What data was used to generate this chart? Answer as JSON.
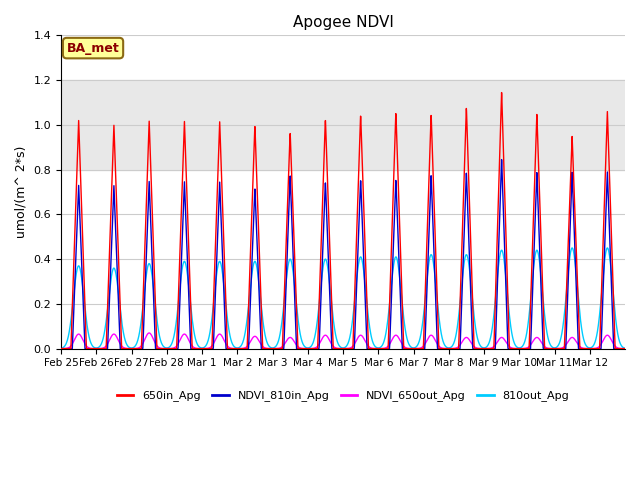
{
  "title": "Apogee NDVI",
  "ylabel": "umol/(m^ 2*s)",
  "ylim": [
    0,
    1.4
  ],
  "background_color": "#ffffff",
  "plot_bg_color": "#ffffff",
  "shade_region": [
    0.8,
    1.2
  ],
  "shade_color": "#e8e8e8",
  "annotation_text": "BA_met",
  "annotation_bg": "#ffff99",
  "annotation_border": "#8b6914",
  "legend_entries": [
    "650in_Apg",
    "NDVI_810in_Apg",
    "NDVI_650out_Apg",
    "810out_Apg"
  ],
  "line_colors": [
    "#ff0000",
    "#0000cc",
    "#ff00ff",
    "#00ccff"
  ],
  "n_days": 16,
  "tick_labels": [
    "Feb 25",
    "Feb 26",
    "Feb 27",
    "Feb 28",
    "Mar 1",
    "Mar 2",
    "Mar 3",
    "Mar 4",
    "Mar 5",
    "Mar 6",
    "Mar 7",
    "Mar 8",
    "Mar 9",
    "Mar 10",
    "Mar 11",
    "Mar 12"
  ],
  "peak_650in": [
    1.02,
    1.0,
    1.02,
    1.02,
    1.02,
    1.0,
    0.97,
    1.03,
    1.05,
    1.06,
    1.05,
    1.08,
    1.15,
    1.05,
    0.95,
    1.06
  ],
  "peak_810in": [
    0.73,
    0.73,
    0.75,
    0.75,
    0.75,
    0.72,
    0.78,
    0.75,
    0.76,
    0.76,
    0.78,
    0.79,
    0.85,
    0.79,
    0.79,
    0.79
  ],
  "peak_650out": [
    0.065,
    0.065,
    0.07,
    0.065,
    0.065,
    0.055,
    0.05,
    0.06,
    0.06,
    0.06,
    0.06,
    0.05,
    0.05,
    0.05,
    0.05,
    0.06
  ],
  "peak_810out": [
    0.37,
    0.36,
    0.38,
    0.39,
    0.39,
    0.39,
    0.4,
    0.4,
    0.41,
    0.41,
    0.42,
    0.42,
    0.44,
    0.44,
    0.45,
    0.45
  ],
  "grid_color": "#cccccc",
  "grid_linewidth": 0.8,
  "pts_per_day": 200
}
